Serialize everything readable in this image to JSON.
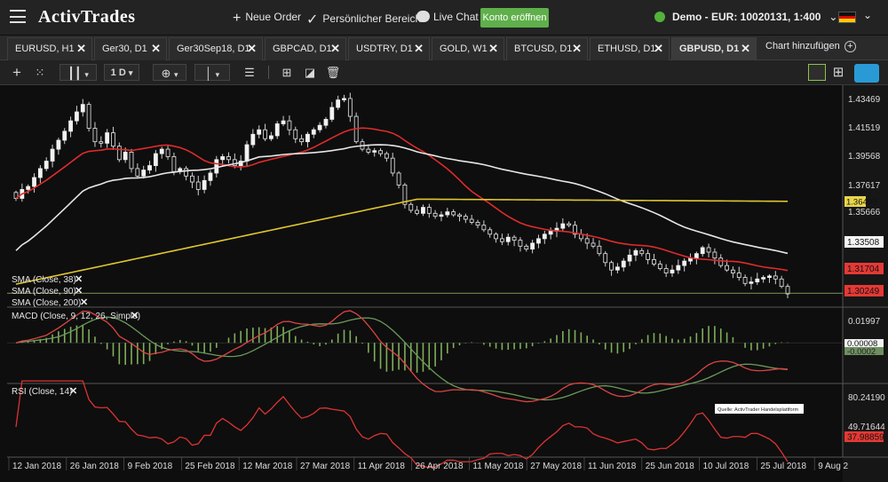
{
  "header": {
    "logo": "ActivTrades",
    "new_order": "Neue Order",
    "personal_area": "Persönlicher Bereich",
    "live_chat": "Live Chat",
    "open_account": "Konto eröffnen",
    "account": "Demo - EUR: 10020131, 1:400",
    "language_flag": "de"
  },
  "tabs": [
    {
      "label": "EURUSD, H1"
    },
    {
      "label": "Ger30, D1"
    },
    {
      "label": "Ger30Sep18, D1"
    },
    {
      "label": "GBPCAD, D1"
    },
    {
      "label": "USDTRY, D1"
    },
    {
      "label": "GOLD, W1"
    },
    {
      "label": "BTCUSD, D1"
    },
    {
      "label": "ETHUSD, D1"
    },
    {
      "label": "GBPUSD, D1",
      "active": true
    }
  ],
  "add_chart": "Chart hinzufügen",
  "toolbar": {
    "timeframe": "1 D",
    "icons": [
      "crosshair-icon",
      "grid-dots-icon",
      "candlestick-icon",
      "timeframe-select",
      "add-indicator-icon",
      "vertical-line-icon",
      "fibonacci-icon",
      "layout-icon",
      "ruler-icon",
      "trash-icon",
      "single-layout-icon",
      "quad-layout-icon",
      "cloud-icon"
    ]
  },
  "watermark": "Quelle: ActivTrader Handelsplattform",
  "colors": {
    "up": "#f2f2f2",
    "down": "#e8e8e8",
    "sma38": "#e02b2b",
    "sma90": "#e6e6e6",
    "sma200": "#e0c72e",
    "macd": "#d44",
    "signal": "#6a9a5a",
    "rsi": "#d33"
  },
  "chart_data": [
    {
      "type": "candlestick",
      "title": "GBPUSD, D1",
      "ylim": [
        1.2955,
        1.4395
      ],
      "yticks": [
        "1.43469",
        "1.41519",
        "1.39568",
        "1.37617",
        "1.35666",
        "1.33508"
      ],
      "price_labels": [
        {
          "value": "1.36409",
          "color": "#e8d64a"
        },
        {
          "value": "1.33508",
          "color": "#ffffff"
        },
        {
          "value": "1.31704",
          "color": "#e53935"
        },
        {
          "value": "1.30249",
          "color": "#e53935"
        }
      ],
      "legend": [
        "SMA (Close, 38)",
        "SMA (Close, 90)",
        "SMA (Close, 200)"
      ],
      "close": [
        1.366,
        1.372,
        1.374,
        1.38,
        1.386,
        1.391,
        1.399,
        1.405,
        1.411,
        1.418,
        1.424,
        1.429,
        1.413,
        1.404,
        1.403,
        1.41,
        1.401,
        1.392,
        1.397,
        1.386,
        1.381,
        1.385,
        1.388,
        1.396,
        1.399,
        1.394,
        1.384,
        1.386,
        1.381,
        1.377,
        1.372,
        1.378,
        1.383,
        1.392,
        1.394,
        1.392,
        1.388,
        1.391,
        1.402,
        1.409,
        1.412,
        1.406,
        1.408,
        1.416,
        1.418,
        1.412,
        1.406,
        1.404,
        1.409,
        1.412,
        1.415,
        1.419,
        1.427,
        1.432,
        1.433,
        1.421,
        1.404,
        1.399,
        1.397,
        1.398,
        1.396,
        1.393,
        1.383,
        1.375,
        1.362,
        1.358,
        1.356,
        1.36,
        1.356,
        1.354,
        1.355,
        1.357,
        1.355,
        1.354,
        1.352,
        1.35,
        1.348,
        1.345,
        1.342,
        1.339,
        1.337,
        1.34,
        1.338,
        1.334,
        1.332,
        1.336,
        1.339,
        1.342,
        1.344,
        1.346,
        1.349,
        1.348,
        1.342,
        1.339,
        1.336,
        1.334,
        1.329,
        1.323,
        1.318,
        1.32,
        1.324,
        1.328,
        1.331,
        1.329,
        1.325,
        1.322,
        1.319,
        1.316,
        1.318,
        1.321,
        1.324,
        1.326,
        1.329,
        1.333,
        1.33,
        1.326,
        1.321,
        1.318,
        1.316,
        1.313,
        1.309,
        1.31,
        1.312,
        1.313,
        1.314,
        1.312,
        1.307,
        1.302
      ],
      "x_labels": [
        "12 Jan 2018",
        "26 Jan 2018",
        "9 Feb 2018",
        "25 Feb 2018",
        "12 Mar 2018",
        "27 Mar 2018",
        "11 Apr 2018",
        "26 Apr 2018",
        "11 May 2018",
        "27 May 2018",
        "11 Jun 2018",
        "25 Jun 2018",
        "10 Jul 2018",
        "25 Jul 2018",
        "9 Aug 2"
      ]
    },
    {
      "type": "line",
      "title": "MACD (Close, 9, 12, 26, Simple)",
      "ylim": [
        -0.03,
        0.026
      ],
      "yticks": [
        "0.01997"
      ],
      "value_labels": [
        "0.00008",
        "-0.0002"
      ]
    },
    {
      "type": "line",
      "title": "RSI (Close, 14)",
      "ylim": [
        20,
        86
      ],
      "yticks": [
        "80.24190",
        "49.71644"
      ],
      "value_labels": [
        "37.98859"
      ]
    }
  ]
}
